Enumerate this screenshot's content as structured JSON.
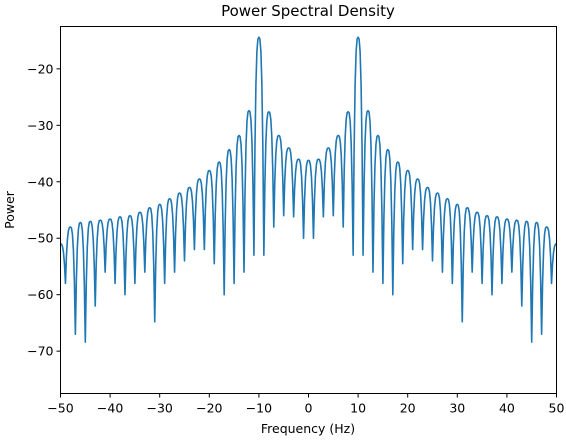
{
  "chart_data": {
    "type": "line",
    "title": "Power Spectral Density",
    "xlabel": "Frequency (Hz)",
    "ylabel": "Power",
    "xlim": [
      -50,
      50
    ],
    "ylim": [
      -77.5,
      -12.5
    ],
    "grid": false,
    "xticks": [
      -50,
      -40,
      -30,
      -20,
      -10,
      0,
      10,
      20,
      30,
      40,
      50
    ],
    "xtick_labels": [
      "−50",
      "−40",
      "−30",
      "−20",
      "−10",
      "0",
      "10",
      "20",
      "30",
      "40",
      "50"
    ],
    "yticks": [
      -70,
      -60,
      -50,
      -40,
      -30,
      -20
    ],
    "ytick_labels": [
      "−70",
      "−60",
      "−50",
      "−40",
      "−30",
      "−20"
    ],
    "series": [
      {
        "color": "#1f77b4",
        "peak_frequencies": [
          -10,
          10
        ],
        "peak_power": -14.4,
        "sidelobe_spacing": 2,
        "x": [
          -50,
          -48,
          -46,
          -44,
          -42,
          -40,
          -38,
          -36,
          -34,
          -32,
          -30,
          -28,
          -26,
          -24,
          -22,
          -20,
          -18,
          -16,
          -14,
          -12,
          -10,
          -8,
          -6,
          -4,
          -2,
          0,
          2,
          4,
          6,
          8,
          10,
          12,
          14,
          16,
          18,
          20,
          22,
          24,
          26,
          28,
          30,
          32,
          34,
          36,
          38,
          40,
          42,
          44,
          46,
          48,
          50
        ],
        "sidelobe_peaks": [
          -51,
          -48,
          -47.2,
          -47,
          -46.8,
          -46.6,
          -46.2,
          -46,
          -45.4,
          -44.6,
          -44,
          -43,
          -42,
          -41,
          -39.5,
          -38,
          -36.5,
          -34.3,
          -31.8,
          -27.4,
          -14.4,
          -27.6,
          -31.8,
          -34,
          -36,
          -36.2,
          -36,
          -34,
          -31.8,
          -27.6,
          -14.4,
          -27.4,
          -31.8,
          -34.3,
          -36.5,
          -38,
          -39.5,
          -41,
          -42,
          -43,
          -44,
          -44.6,
          -45.4,
          -46,
          -46.2,
          -46.6,
          -46.8,
          -47,
          -47.2,
          -48,
          -51
        ],
        "null_depths": [
          -58,
          -67,
          -68.4,
          -62,
          -56,
          -58,
          -60,
          -58,
          -56,
          -64.8,
          -58,
          -56,
          -54,
          -52,
          -52,
          -54.5,
          -60,
          -58,
          -56,
          -53,
          -53,
          -48,
          -46,
          -46.2,
          -50,
          -50,
          -46.2,
          -46,
          -48,
          -53,
          -53,
          -56,
          -58,
          -60,
          -54.5,
          -52,
          -52,
          -54,
          -56,
          -58,
          -64.8,
          -56,
          -58,
          -60,
          -58,
          -56,
          -62,
          -68.4,
          -67,
          -58
        ]
      }
    ]
  }
}
